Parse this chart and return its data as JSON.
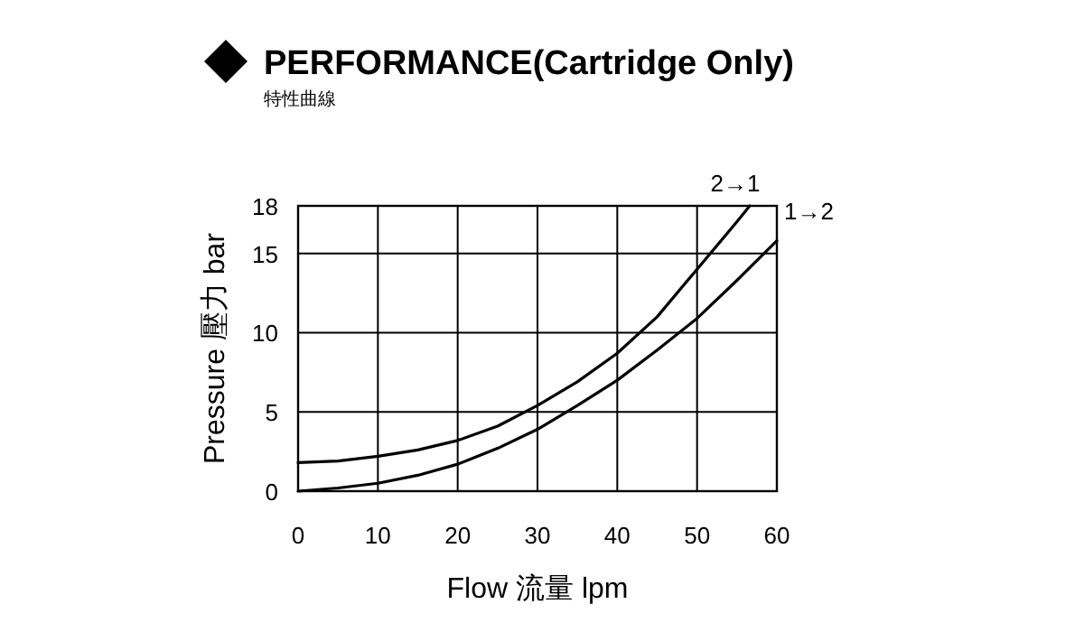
{
  "chart_data": {
    "type": "line",
    "title": "PERFORMANCE(Cartridge Only)",
    "subtitle": "特性曲線",
    "xlabel": "Flow 流量 lpm",
    "ylabel": "Pressure 壓力 bar",
    "xlim": [
      0,
      60
    ],
    "xticks": [
      0,
      10,
      20,
      30,
      40,
      50,
      60
    ],
    "ylim": [
      0,
      18
    ],
    "yticks": [
      0,
      5,
      10,
      15,
      18
    ],
    "grid": true,
    "marker": "none",
    "series": [
      {
        "name": "2→1",
        "color": "#000000",
        "x": [
          0,
          5,
          10,
          15,
          20,
          25,
          30,
          35,
          40,
          45,
          50,
          55,
          56.6
        ],
        "values": [
          1.8,
          1.9,
          2.2,
          2.6,
          3.2,
          4.1,
          5.4,
          6.9,
          8.7,
          11.0,
          14.0,
          17.0,
          18
        ]
      },
      {
        "name": "1→2",
        "color": "#000000",
        "x": [
          0,
          5,
          10,
          15,
          20,
          25,
          30,
          35,
          40,
          45,
          50,
          55,
          60
        ],
        "values": [
          0,
          0.2,
          0.5,
          1.0,
          1.7,
          2.7,
          3.9,
          5.4,
          7.0,
          8.9,
          10.9,
          13.3,
          15.8
        ]
      }
    ]
  }
}
